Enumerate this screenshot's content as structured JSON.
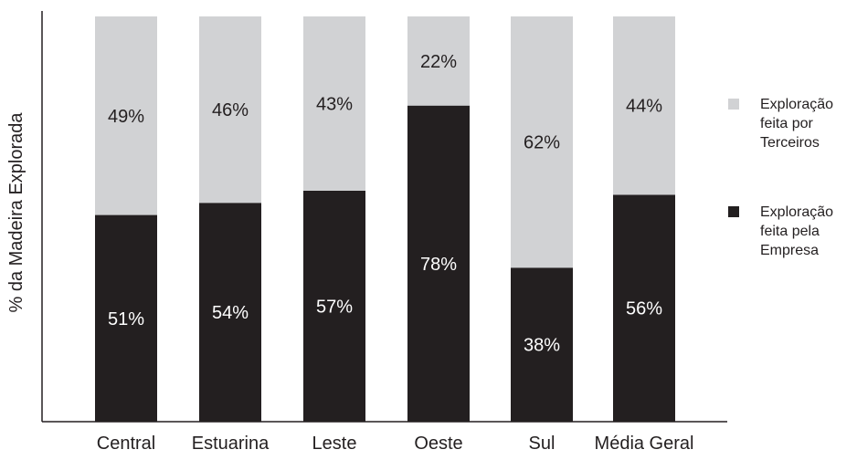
{
  "chart_data": {
    "type": "bar",
    "stacked": true,
    "percent": true,
    "title": "",
    "xlabel": "",
    "ylabel": "% da Madeira Explorada",
    "ylim": [
      0,
      100
    ],
    "grid": false,
    "legend_position": "right",
    "categories": [
      "Central",
      "Estuarina",
      "Leste",
      "Oeste",
      "Sul",
      "Média Geral"
    ],
    "series": [
      {
        "name": "Exploração feita pela Empresa",
        "color": "#231f20",
        "label_color": "#ffffff",
        "values": [
          51,
          54,
          57,
          78,
          38,
          56
        ],
        "labels": [
          "51%",
          "54%",
          "57%",
          "78%",
          "38%",
          "56%"
        ]
      },
      {
        "name": "Exploração feita por Terceiros",
        "color": "#d1d2d4",
        "label_color": "#231f20",
        "values": [
          49,
          46,
          43,
          22,
          62,
          44
        ],
        "labels": [
          "49%",
          "46%",
          "43%",
          "22%",
          "62%",
          "44%"
        ]
      }
    ],
    "legend": [
      {
        "lines": [
          "Exploração",
          "feita por",
          "Terceiros"
        ],
        "color": "#d1d2d4"
      },
      {
        "lines": [
          "Exploração",
          "feita pela",
          "Empresa"
        ],
        "color": "#231f20"
      }
    ]
  }
}
